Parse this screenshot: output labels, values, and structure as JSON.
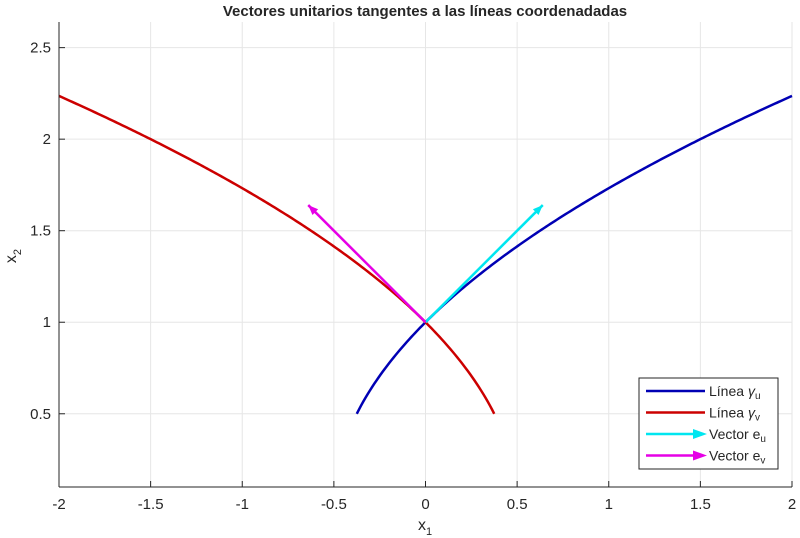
{
  "chart_data": {
    "type": "line",
    "title": "Vectores unitarios tangentes a las líneas coordenadadas",
    "xlabel": "x",
    "xlabel_sub": "1",
    "ylabel": "x",
    "ylabel_sub": "2",
    "xlim": [
      -2,
      2
    ],
    "ylim": [
      0.1,
      2.64
    ],
    "xticks": [
      -2,
      -1.5,
      -1,
      -0.5,
      0,
      0.5,
      1,
      1.5,
      2
    ],
    "xtick_labels": [
      "-2",
      "-1.5",
      "-1",
      "-0.5",
      "0",
      "0.5",
      "1",
      "1.5",
      "2"
    ],
    "yticks": [
      0.5,
      1,
      1.5,
      2,
      2.5
    ],
    "ytick_labels": [
      "0.5",
      "1",
      "1.5",
      "2",
      "2.5"
    ],
    "grid": true,
    "legend_position": "southeast",
    "series": [
      {
        "name": "Línea γu",
        "label": "Línea",
        "symbol": "γ",
        "sub": "u",
        "kind": "curve",
        "color": "#0000b4",
        "equation": "x2 = sqrt(1 + 2*x1)",
        "x_range": [
          -0.375,
          2
        ],
        "x": [
          -0.375,
          -0.25,
          0,
          0.25,
          0.5,
          0.75,
          1,
          1.25,
          1.5,
          1.75,
          2
        ],
        "y": [
          0.5,
          0.707,
          1,
          1.225,
          1.414,
          1.581,
          1.732,
          1.871,
          2,
          2.121,
          2.236
        ]
      },
      {
        "name": "Línea γv",
        "label": "Línea",
        "symbol": "γ",
        "sub": "v",
        "kind": "curve",
        "color": "#cc0000",
        "equation": "x2 = sqrt(1 - 2*x1)",
        "x_range": [
          -2,
          0.375
        ],
        "x": [
          -2,
          -1.75,
          -1.5,
          -1.25,
          -1,
          -0.75,
          -0.5,
          -0.25,
          0,
          0.25,
          0.375
        ],
        "y": [
          2.236,
          2.121,
          2,
          1.871,
          1.732,
          1.581,
          1.414,
          1.225,
          1,
          0.707,
          0.5
        ]
      },
      {
        "name": "Vector eu",
        "label": "Vector",
        "symbol": "e",
        "sub": "u",
        "kind": "arrow",
        "color": "#00e6f0",
        "origin": [
          0,
          1
        ],
        "end": [
          0.64,
          1.64
        ]
      },
      {
        "name": "Vector ev",
        "label": "Vector",
        "symbol": "e",
        "sub": "v",
        "kind": "arrow",
        "color": "#e600e6",
        "origin": [
          0,
          1
        ],
        "end": [
          -0.64,
          1.64
        ]
      }
    ]
  }
}
